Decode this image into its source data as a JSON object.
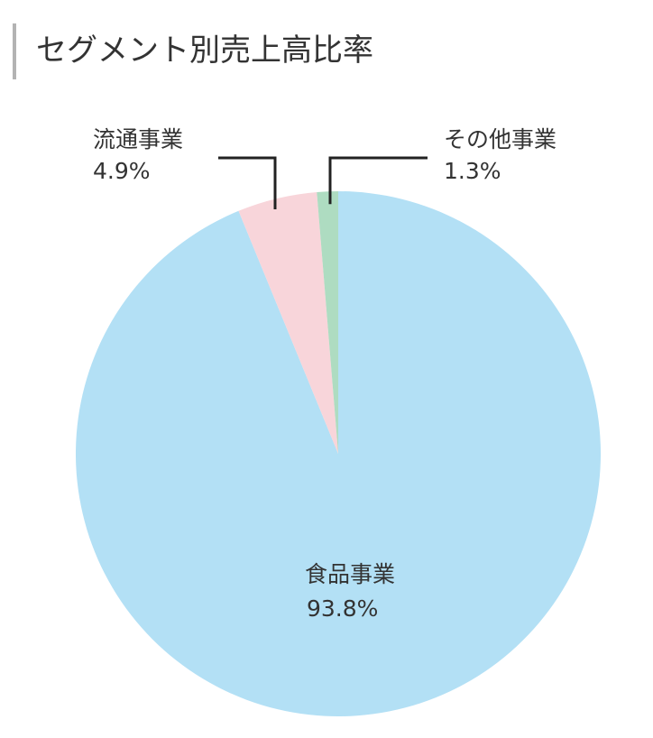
{
  "header": {
    "title": "セグメント別売上高比率"
  },
  "chart_data": {
    "type": "pie",
    "title": "セグメント別売上高比率",
    "start": "12 o'clock",
    "direction": "clockwise",
    "slices": [
      {
        "name": "食品事業",
        "value": 93.8,
        "label": "93.8%",
        "color": "#b3e0f5"
      },
      {
        "name": "流通事業",
        "value": 4.9,
        "label": "4.9%",
        "color": "#f8d5da"
      },
      {
        "name": "その他事業",
        "value": 1.3,
        "label": "1.3%",
        "color": "#aedcc1"
      }
    ]
  }
}
